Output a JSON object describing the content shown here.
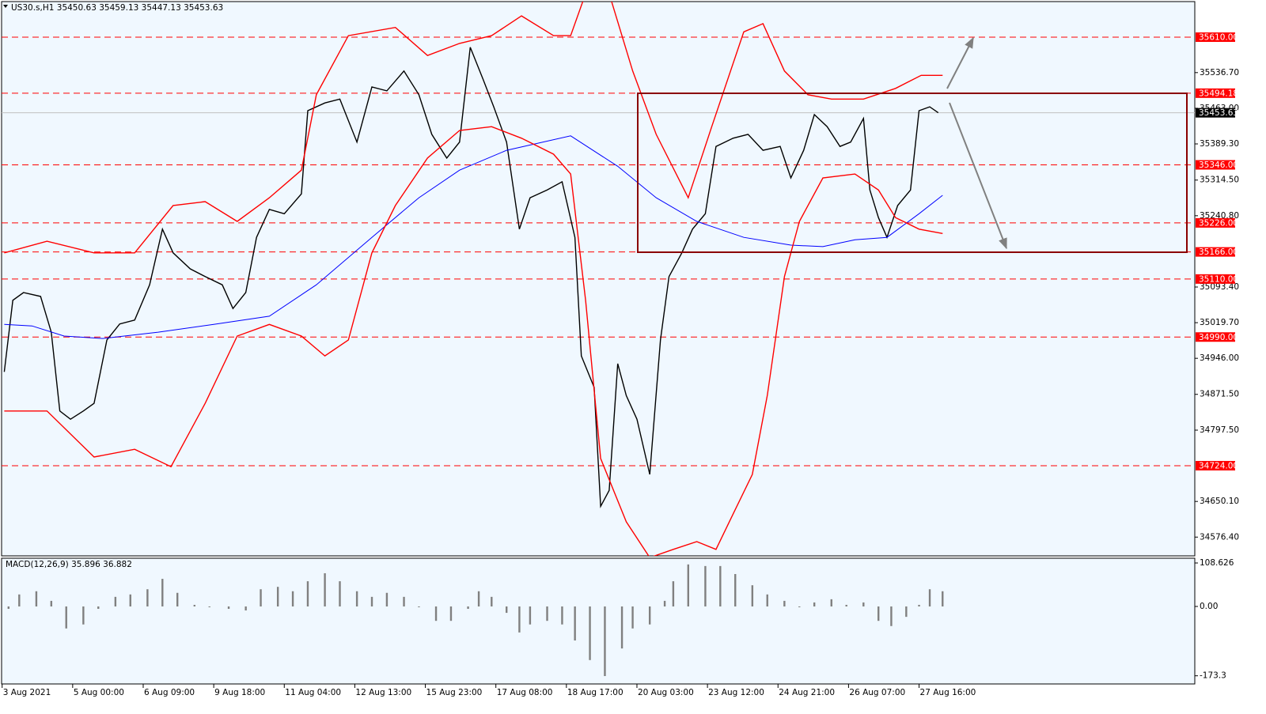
{
  "chart_data": [
    {
      "type": "line",
      "title": "US30.s,H1  35450.63 35459.13 35447.13 35453.63",
      "xlim": [
        0,
        559
      ],
      "xticks": [
        {
          "value": 1,
          "label": "3 Aug 2021"
        },
        {
          "value": 34,
          "label": "5 Aug 00:00"
        },
        {
          "value": 67,
          "label": "6 Aug 09:00"
        },
        {
          "value": 100,
          "label": "9 Aug 18:00"
        },
        {
          "value": 133,
          "label": "11 Aug 04:00"
        },
        {
          "value": 166,
          "label": "12 Aug 13:00"
        },
        {
          "value": 199,
          "label": "15 Aug 23:00"
        },
        {
          "value": 232,
          "label": "17 Aug 08:00"
        },
        {
          "value": 265,
          "label": "18 Aug 17:00"
        },
        {
          "value": 298,
          "label": "20 Aug 03:00"
        },
        {
          "value": 331,
          "label": "23 Aug 12:00"
        },
        {
          "value": 364,
          "label": "24 Aug 21:00"
        },
        {
          "value": 397,
          "label": "26 Aug 07:00"
        },
        {
          "value": 430,
          "label": "27 Aug 16:00"
        }
      ],
      "ylim": [
        34537.6,
        35686.8
      ],
      "yticks": [
        {
          "value": 35536.7,
          "label": "35536.70"
        },
        {
          "value": 35463,
          "label": "35463.00"
        },
        {
          "value": 35389.3,
          "label": "35389.30"
        },
        {
          "value": 35314.5,
          "label": "35314.50"
        },
        {
          "value": 35240.8,
          "label": "35240.80"
        },
        {
          "value": 35093.4,
          "label": "35093.40"
        },
        {
          "value": 35019.7,
          "label": "35019.70"
        },
        {
          "value": 34946,
          "label": "34946.00"
        },
        {
          "value": 34871.5,
          "label": "34871.50"
        },
        {
          "value": 34797.5,
          "label": "34797.50"
        },
        {
          "value": 34650.1,
          "label": "34650.10"
        },
        {
          "value": 34576.4,
          "label": "34576.40"
        }
      ],
      "levels": [
        {
          "value": 35610,
          "label": "35610.00"
        },
        {
          "value": 35494.18,
          "label": "35494.18"
        },
        {
          "value": 35346,
          "label": "35346.00"
        },
        {
          "value": 35226,
          "label": "35226.00"
        },
        {
          "value": 35166,
          "label": "35166.00"
        },
        {
          "value": 35110,
          "label": "35110.00"
        },
        {
          "value": 34990,
          "label": "34990.00"
        },
        {
          "value": 34724,
          "label": "34724.00"
        }
      ],
      "level_color": "#ff0000",
      "last_price": {
        "value": 35453.63,
        "label": "35453.63"
      },
      "series": [
        {
          "color": "#000000",
          "x": [
            2,
            6,
            11,
            19,
            24,
            28,
            33,
            39,
            44,
            50,
            56,
            63,
            70,
            76,
            81,
            89,
            96,
            104,
            109,
            115,
            120,
            126,
            133,
            141,
            144,
            152,
            159,
            167,
            174,
            181,
            189,
            196,
            202,
            209,
            215,
            220,
            226,
            231,
            237,
            243,
            248,
            256,
            263,
            269,
            272,
            278,
            281,
            285,
            289,
            293,
            298,
            304,
            309,
            313,
            319,
            324,
            330,
            335,
            343,
            350,
            357,
            365,
            370,
            376,
            381,
            387,
            393,
            398,
            404,
            407,
            411,
            415,
            420,
            426,
            430,
            435,
            439
          ],
          "values": [
            34918,
            35066,
            35082,
            35074,
            35000,
            34837,
            34820,
            34837,
            34853,
            34984,
            35017,
            35025,
            35098,
            35213,
            35164,
            35131,
            35115,
            35098,
            35049,
            35082,
            35196,
            35254,
            35245,
            35286,
            35458,
            35474,
            35482,
            35393,
            35507,
            35499,
            35540,
            35491,
            35409,
            35360,
            35393,
            35589,
            35523,
            35466,
            35393,
            35213,
            35278,
            35294,
            35311,
            35196,
            34951,
            34886,
            34640,
            34673,
            34935,
            34869,
            34820,
            34706,
            34984,
            35115,
            35164,
            35213,
            35245,
            35384,
            35401,
            35409,
            35376,
            35384,
            35319,
            35376,
            35450,
            35425,
            35384,
            35393,
            35442,
            35294,
            35237,
            35196,
            35262,
            35294,
            35458,
            35466,
            35453.63
          ]
        },
        {
          "color": "#0000ff",
          "x": [
            2,
            15,
            30,
            48,
            74,
            100,
            126,
            148,
            174,
            196,
            215,
            237,
            267,
            289,
            307,
            326,
            348,
            370,
            385,
            400,
            415,
            430,
            441
          ],
          "values": [
            35016,
            35013,
            34992,
            34987,
            35000,
            35016,
            35033,
            35098,
            35196,
            35278,
            35335,
            35376,
            35406,
            35343,
            35278,
            35229,
            35196,
            35180,
            35177,
            35191,
            35196,
            35245,
            35283
          ]
        },
        {
          "color": "#ff0000",
          "x": [
            2,
            22,
            44,
            63,
            81,
            96,
            111,
            126,
            141,
            148,
            163,
            185,
            200,
            215,
            230,
            244,
            259,
            267,
            274,
            285,
            296,
            307,
            322,
            333,
            348,
            357,
            367,
            378,
            389,
            404,
            419,
            431,
            441
          ],
          "values": [
            35164,
            35188,
            35164,
            35164,
            35262,
            35270,
            35229,
            35278,
            35335,
            35491,
            35613,
            35630,
            35572,
            35597,
            35613,
            35654,
            35613,
            35613,
            35700,
            35700,
            35540,
            35409,
            35278,
            35425,
            35621,
            35638,
            35540,
            35491,
            35482,
            35482,
            35504,
            35531,
            35531
          ]
        },
        {
          "color": "#ff0000",
          "x": [
            2,
            22,
            44,
            63,
            80,
            96,
            111,
            126,
            141,
            152,
            163,
            174,
            185,
            200,
            215,
            230,
            244,
            259,
            267,
            274,
            281,
            293,
            304,
            315,
            326,
            335,
            343,
            352,
            359,
            367,
            374,
            385,
            400,
            411,
            419,
            430,
            441
          ],
          "values": [
            34837,
            34837,
            34742,
            34758,
            34722,
            34853,
            34992,
            35016,
            34992,
            34951,
            34984,
            35164,
            35262,
            35360,
            35417,
            35425,
            35401,
            35368,
            35327,
            35066,
            34739,
            34608,
            34534,
            34551,
            34567,
            34551,
            34624,
            34706,
            34869,
            35115,
            35229,
            35319,
            35327,
            35294,
            35237,
            35213,
            35204
          ]
        }
      ]
    },
    {
      "type": "bar",
      "title": "MACD(12,26,9) 35.896 36.882",
      "xlim": [
        0,
        559
      ],
      "ylim": [
        -193.7,
        120.5
      ],
      "yticks": [
        108.626,
        {
          "value": 0,
          "label": "0.00"
        },
        -173.3
      ],
      "color": "#808080",
      "x": [
        4,
        9,
        17,
        24,
        31,
        39,
        46,
        54,
        61,
        69,
        76,
        83,
        91,
        98,
        107,
        115,
        122,
        130,
        137,
        144,
        152,
        159,
        167,
        174,
        181,
        189,
        196,
        204,
        211,
        219,
        224,
        230,
        237,
        243,
        248,
        256,
        263,
        269,
        276,
        283,
        291,
        296,
        304,
        311,
        315,
        322,
        330,
        337,
        344,
        352,
        359,
        367,
        374,
        381,
        389,
        396,
        404,
        411,
        417,
        424,
        430,
        435,
        441
      ],
      "values": [
        -6,
        30,
        38,
        14,
        -55,
        -45,
        -6,
        24,
        30,
        43,
        69,
        34,
        4,
        -2,
        -6,
        -10,
        43,
        49,
        38,
        63,
        83,
        63,
        38,
        24,
        34,
        24,
        -2,
        -36,
        -36,
        -6,
        38,
        24,
        -16,
        -65,
        -45,
        -36,
        -45,
        -85,
        -134,
        -174,
        -105,
        -55,
        -45,
        14,
        63,
        105,
        101,
        101,
        81,
        53,
        30,
        14,
        -2,
        10,
        18,
        4,
        10,
        -36,
        -49,
        -26,
        4,
        43,
        38
      ]
    }
  ]
}
